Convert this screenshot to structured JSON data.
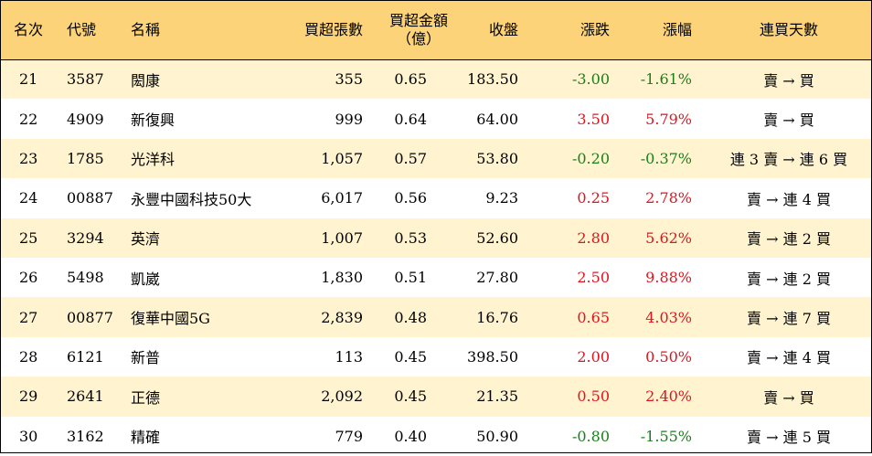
{
  "headers": {
    "rank": "名次",
    "code": "代號",
    "name": "名稱",
    "net_lots": "買超張數",
    "net_amount_line1": "買超金額",
    "net_amount_line2": "（億）",
    "close": "收盤",
    "change": "漲跌",
    "change_pct": "漲幅",
    "streak": "連買天數"
  },
  "rows": [
    {
      "rank": "21",
      "code": "3587",
      "name": "閎康",
      "net_lots": "355",
      "net_amount": "0.65",
      "close": "183.50",
      "change": "-3.00",
      "change_pct": "-1.61%",
      "streak": "賣 → 買",
      "dir": "neg"
    },
    {
      "rank": "22",
      "code": "4909",
      "name": "新復興",
      "net_lots": "999",
      "net_amount": "0.64",
      "close": "64.00",
      "change": "3.50",
      "change_pct": "5.79%",
      "streak": "賣 → 買",
      "dir": "pos"
    },
    {
      "rank": "23",
      "code": "1785",
      "name": "光洋科",
      "net_lots": "1,057",
      "net_amount": "0.57",
      "close": "53.80",
      "change": "-0.20",
      "change_pct": "-0.37%",
      "streak": "連 3 賣 → 連 6 買",
      "dir": "neg"
    },
    {
      "rank": "24",
      "code": "00887",
      "name": "永豐中國科技50大",
      "net_lots": "6,017",
      "net_amount": "0.56",
      "close": "9.23",
      "change": "0.25",
      "change_pct": "2.78%",
      "streak": "賣 → 連 4 買",
      "dir": "pos"
    },
    {
      "rank": "25",
      "code": "3294",
      "name": "英濟",
      "net_lots": "1,007",
      "net_amount": "0.53",
      "close": "52.60",
      "change": "2.80",
      "change_pct": "5.62%",
      "streak": "賣 → 連 2 買",
      "dir": "pos"
    },
    {
      "rank": "26",
      "code": "5498",
      "name": "凱崴",
      "net_lots": "1,830",
      "net_amount": "0.51",
      "close": "27.80",
      "change": "2.50",
      "change_pct": "9.88%",
      "streak": "賣 → 連 2 買",
      "dir": "pos"
    },
    {
      "rank": "27",
      "code": "00877",
      "name": "復華中國5G",
      "net_lots": "2,839",
      "net_amount": "0.48",
      "close": "16.76",
      "change": "0.65",
      "change_pct": "4.03%",
      "streak": "賣 → 連 7 買",
      "dir": "pos"
    },
    {
      "rank": "28",
      "code": "6121",
      "name": "新普",
      "net_lots": "113",
      "net_amount": "0.45",
      "close": "398.50",
      "change": "2.00",
      "change_pct": "0.50%",
      "streak": "賣 → 連 4 買",
      "dir": "pos"
    },
    {
      "rank": "29",
      "code": "2641",
      "name": "正德",
      "net_lots": "2,092",
      "net_amount": "0.45",
      "close": "21.35",
      "change": "0.50",
      "change_pct": "2.40%",
      "streak": "賣 → 買",
      "dir": "pos"
    },
    {
      "rank": "30",
      "code": "3162",
      "name": "精確",
      "net_lots": "779",
      "net_amount": "0.40",
      "close": "50.90",
      "change": "-0.80",
      "change_pct": "-1.55%",
      "streak": "賣 → 連 5 買",
      "dir": "neg"
    }
  ],
  "colors": {
    "header_bg": "#fcd378",
    "alt_row_bg": "#fff3d0",
    "up": "#e0141e",
    "down": "#1a7f1a"
  }
}
